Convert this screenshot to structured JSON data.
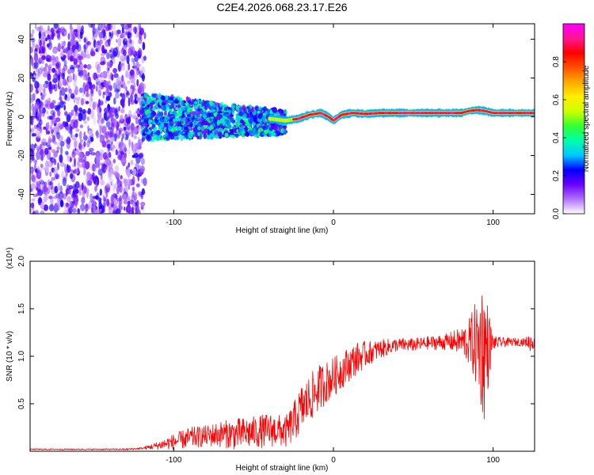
{
  "figure": {
    "title": "C2E4.2026.068.23.17.E26"
  },
  "colors": {
    "snr_line": "#ff0000",
    "ridge": "#ff2e80",
    "plot_frame": "#000000"
  },
  "chart_data": [
    {
      "type": "heatmap",
      "name": "spectrogram",
      "xlabel": "Height of straight line (km)",
      "ylabel": "Frequency (Hz)",
      "xlim": [
        -190,
        126
      ],
      "ylim": [
        -50,
        48
      ],
      "x_ticks": [
        {
          "value": -100,
          "label": "-100"
        },
        {
          "value": 0,
          "label": "0"
        },
        {
          "value": 100,
          "label": "100"
        }
      ],
      "y_ticks": [
        {
          "value": -40,
          "label": "-40"
        },
        {
          "value": -20,
          "label": "-20"
        },
        {
          "value": 0,
          "label": "0"
        },
        {
          "value": 20,
          "label": "20"
        },
        {
          "value": 40,
          "label": "40"
        }
      ],
      "regions": [
        {
          "name": "broadband-noise",
          "x_range": [
            -190,
            -118
          ],
          "freq_range": [
            -50,
            48
          ],
          "amplitude": 0.15
        },
        {
          "name": "scattered-cluster",
          "x_range": [
            -120,
            -30
          ],
          "freq_range": [
            -12,
            12
          ],
          "amplitude": 0.35
        },
        {
          "name": "narrow-line",
          "x_range": [
            -30,
            126
          ],
          "freq_center": 2,
          "amplitude": 0.95
        }
      ],
      "ridge": {
        "x": [
          -40,
          -30,
          -22,
          -15,
          -8,
          -3,
          0,
          5,
          12,
          20,
          30,
          50,
          80,
          85,
          90,
          95,
          100,
          126
        ],
        "freq": [
          -1,
          -2,
          -1,
          1,
          2,
          0,
          -2,
          1,
          2,
          1.5,
          2,
          2,
          2,
          3,
          3.5,
          3,
          2,
          2
        ]
      },
      "colorbar": {
        "label": "Normalized spectral amplitude",
        "range": [
          0,
          1
        ],
        "ticks": [
          {
            "value": 0.0,
            "label": "0.0"
          },
          {
            "value": 0.2,
            "label": "0.2"
          },
          {
            "value": 0.4,
            "label": "0.4"
          },
          {
            "value": 0.6,
            "label": "0.6"
          },
          {
            "value": 0.8,
            "label": "0.8"
          }
        ],
        "colormap": [
          "#ffffff",
          "#b070ff",
          "#6a00ff",
          "#0000ff",
          "#00c8ff",
          "#00ffaa",
          "#33ff33",
          "#ccff00",
          "#ffee00",
          "#ffaa00",
          "#ff5000",
          "#ff0000",
          "#ff1493",
          "#ff00ff"
        ]
      }
    },
    {
      "type": "line",
      "name": "snr",
      "xlabel": "Height of straight line (km)",
      "ylabel": "SNR (10 * v/v)",
      "scale_label": "(x10⁴)",
      "xlim": [
        -190,
        126
      ],
      "ylim": [
        0,
        2.0
      ],
      "x_ticks": [
        {
          "value": -100,
          "label": "-100"
        },
        {
          "value": 0,
          "label": "0"
        },
        {
          "value": 100,
          "label": "100"
        }
      ],
      "y_ticks": [
        {
          "value": 0.5,
          "label": "0.5"
        },
        {
          "value": 1.0,
          "label": "1.0"
        },
        {
          "value": 1.5,
          "label": "1.5"
        },
        {
          "value": 2.0,
          "label": "2.0"
        }
      ],
      "series": [
        {
          "name": "SNR",
          "x": [
            -190,
            -160,
            -140,
            -130,
            -120,
            -110,
            -100,
            -90,
            -80,
            -70,
            -60,
            -50,
            -40,
            -35,
            -30,
            -25,
            -20,
            -15,
            -10,
            -5,
            0,
            5,
            10,
            15,
            20,
            25,
            30,
            40,
            50,
            60,
            70,
            80,
            85,
            90,
            93,
            95,
            97,
            100,
            110,
            120,
            124,
            126
          ],
          "center": [
            0.02,
            0.02,
            0.02,
            0.02,
            0.03,
            0.06,
            0.1,
            0.14,
            0.16,
            0.18,
            0.18,
            0.2,
            0.22,
            0.22,
            0.2,
            0.3,
            0.45,
            0.55,
            0.65,
            0.72,
            0.78,
            0.85,
            0.92,
            0.98,
            1.02,
            1.05,
            1.08,
            1.12,
            1.12,
            1.14,
            1.15,
            1.16,
            1.15,
            1.13,
            1.1,
            1.05,
            1.1,
            1.14,
            1.15,
            1.15,
            1.15,
            1.14
          ],
          "noise": [
            0.005,
            0.005,
            0.005,
            0.006,
            0.008,
            0.03,
            0.06,
            0.08,
            0.08,
            0.1,
            0.12,
            0.12,
            0.13,
            0.12,
            0.12,
            0.15,
            0.18,
            0.18,
            0.18,
            0.16,
            0.15,
            0.14,
            0.13,
            0.12,
            0.1,
            0.08,
            0.07,
            0.05,
            0.05,
            0.05,
            0.06,
            0.1,
            0.18,
            0.35,
            0.5,
            0.55,
            0.3,
            0.05,
            0.03,
            0.03,
            0.08,
            0.03
          ]
        }
      ]
    }
  ]
}
